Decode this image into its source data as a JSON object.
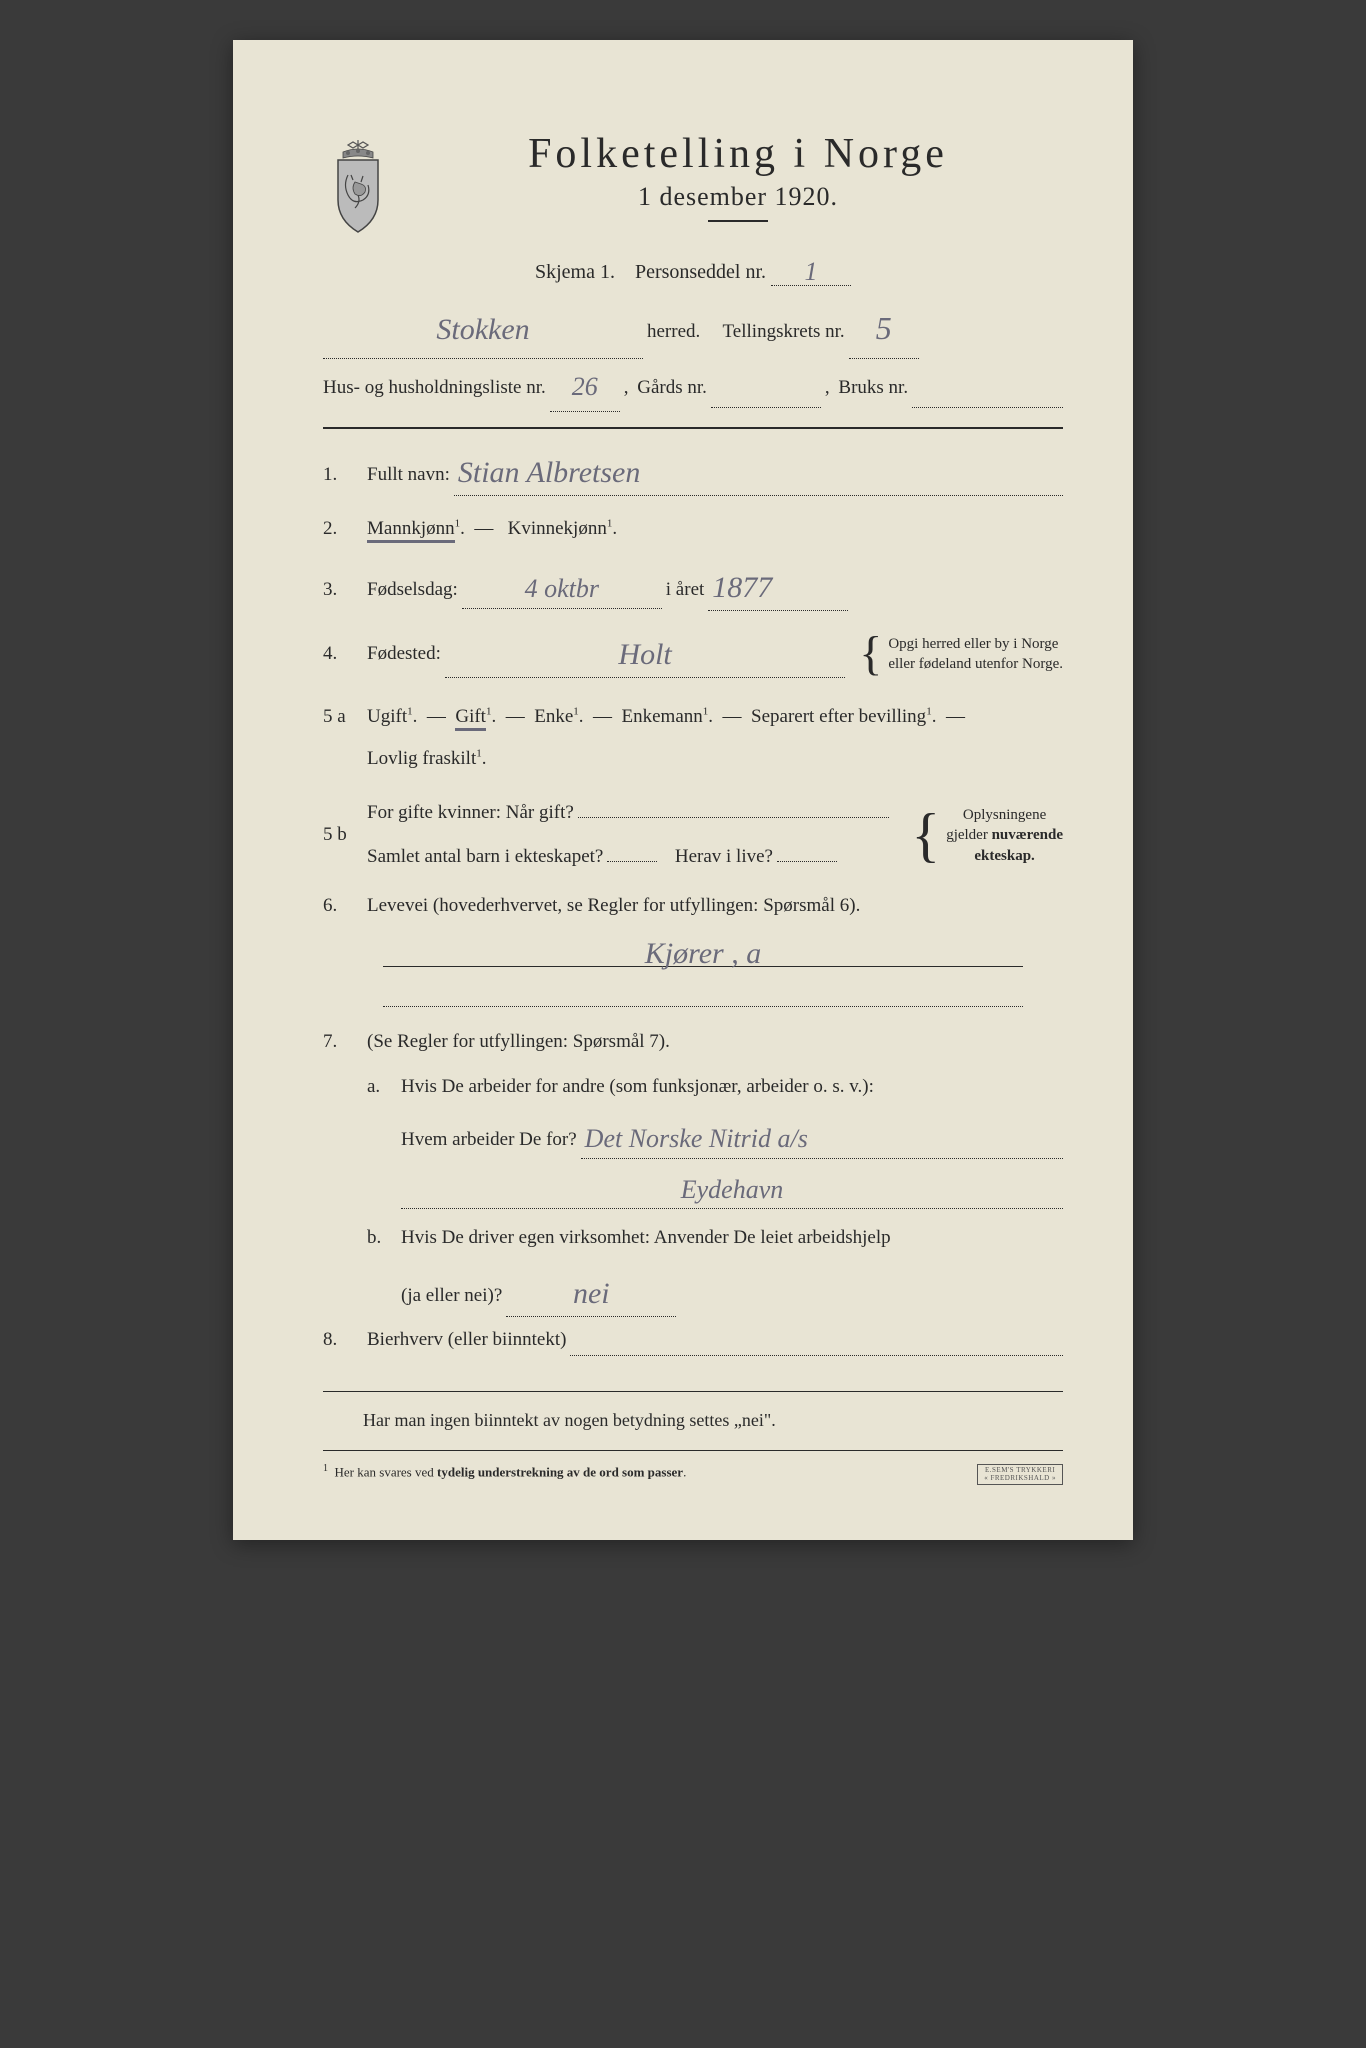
{
  "title": "Folketelling  i  Norge",
  "subtitle": "1 desember 1920.",
  "skjema_label": "Skjema 1.",
  "personseddel_label": "Personseddel nr.",
  "personseddel_nr": "1",
  "herred_value": "Stokken",
  "herred_label": "herred.",
  "tellingskrets_label": "Tellingskrets nr.",
  "tellingskrets_nr": "5",
  "hushold_label": "Hus- og husholdningsliste nr.",
  "hushold_nr": "26",
  "gards_label": "Gårds nr.",
  "gards_nr": "",
  "bruks_label": "Bruks nr.",
  "bruks_nr": "",
  "q1": {
    "num": "1.",
    "label": "Fullt navn:",
    "value": "Stian Albretsen"
  },
  "q2": {
    "num": "2.",
    "mann": "Mannkjønn",
    "kvinne": "Kvinnekjønn",
    "sup": "1"
  },
  "q3": {
    "num": "3.",
    "label": "Fødselsdag:",
    "day": "4 oktbr",
    "year_label": "i året",
    "year": "1877"
  },
  "q4": {
    "num": "4.",
    "label": "Fødested:",
    "value": "Holt",
    "note1": "Opgi herred eller by i Norge",
    "note2": "eller fødeland utenfor Norge."
  },
  "q5a": {
    "num": "5 a",
    "ugift": "Ugift",
    "gift": "Gift",
    "enke": "Enke",
    "enkemann": "Enkemann",
    "separert": "Separert efter bevilling",
    "fraskilt": "Lovlig fraskilt",
    "sup": "1"
  },
  "q5b": {
    "num": "5 b",
    "label1": "For gifte kvinner:  Når gift?",
    "label2": "Samlet antal barn i ekteskapet?",
    "label3": "Herav i live?",
    "note1": "Oplysningene",
    "note2": "gjelder nuværende",
    "note3": "ekteskap."
  },
  "q6": {
    "num": "6.",
    "label": "Levevei  (hovederhvervet,  se Regler for utfyllingen:   Spørsmål 6).",
    "value": "Kjører ,   a"
  },
  "q7": {
    "num": "7.",
    "label": "(Se Regler for utfyllingen:   Spørsmål 7).",
    "a_label": "Hvis De arbeider for andre (som funksjonær, arbeider o. s. v.):",
    "a_q": "Hvem arbeider De for?",
    "a_val1": "Det Norske Nitrid a/s",
    "a_val2": "Eydehavn",
    "b_label": "Hvis  De  driver egen  virksomhet:   Anvender  De leiet  arbeidshjelp",
    "b_q": "(ja eller nei)?",
    "b_val": "nei"
  },
  "q8": {
    "num": "8.",
    "label": "Bierhverv  (eller biinntekt)",
    "value": ""
  },
  "footer1": "Har man ingen biinntekt av nogen betydning settes „nei\".",
  "footer2": "Her kan svares ved tydelig understrekning av de ord som passer.",
  "stamp": "E.SEM'S TRYKKERI\nFREDRIKSHALD",
  "colors": {
    "paper": "#e8e4d4",
    "ink": "#2a2a2a",
    "pencil": "#6a6a7a",
    "background": "#3a3a3a"
  }
}
